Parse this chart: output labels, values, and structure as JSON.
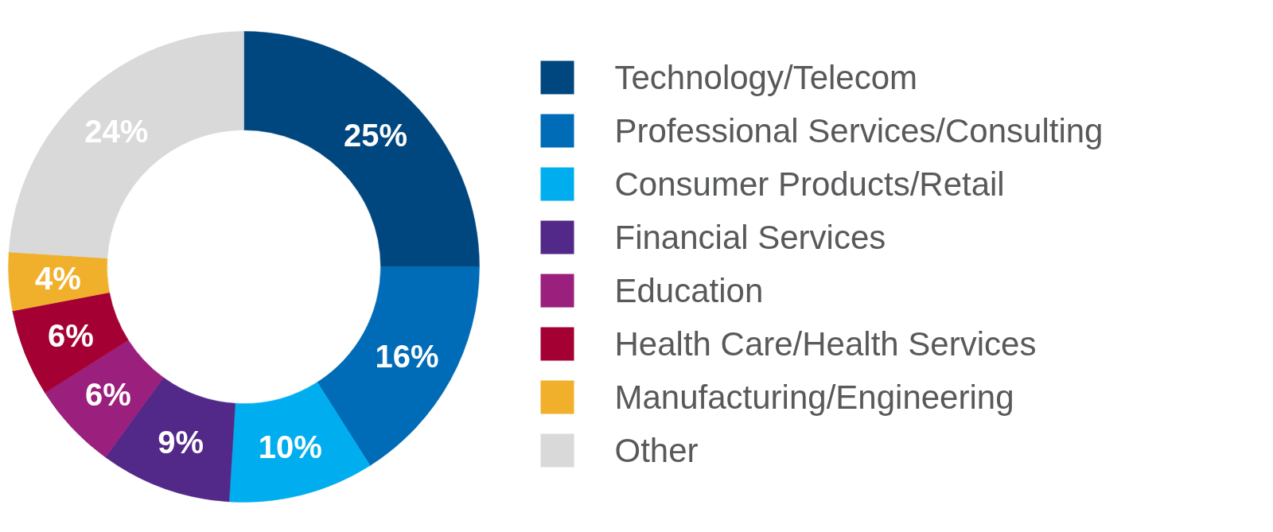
{
  "chart_data": {
    "type": "donut",
    "categories": [
      "Technology/Telecom",
      "Professional Services/Consulting",
      "Consumer Products/Retail",
      "Financial Services",
      "Education",
      "Health Care/Health Services",
      "Manufacturing/Engineering",
      "Other"
    ],
    "values": [
      25,
      16,
      10,
      9,
      6,
      6,
      4,
      24
    ],
    "colors": [
      "#00467f",
      "#006bb6",
      "#00aeef",
      "#522888",
      "#9b1f7c",
      "#a50034",
      "#f1b02c",
      "#d9d9d9"
    ],
    "value_labels": [
      "25%",
      "16%",
      "10%",
      "9%",
      "6%",
      "6%",
      "4%",
      "24%"
    ],
    "legend": "right"
  }
}
